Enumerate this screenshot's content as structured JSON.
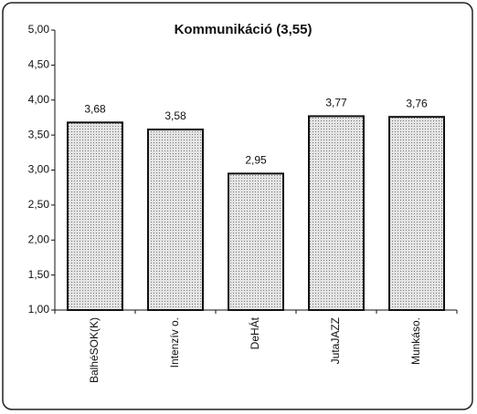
{
  "chart_data": {
    "type": "bar",
    "title": "Kommunikáció (3,55)",
    "categories": [
      "BalhéSOK(K)",
      "Intenzív o.",
      "DeHÁt",
      "JutaJAZZ",
      "Munkáso."
    ],
    "values": [
      3.68,
      3.58,
      2.95,
      3.77,
      3.76
    ],
    "value_labels": [
      "3,68",
      "3,58",
      "2,95",
      "3,77",
      "3,76"
    ],
    "color": "#cfcfcf",
    "ylim": [
      1,
      5
    ],
    "yticks": [
      {
        "value": 1,
        "label": "1,00"
      },
      {
        "value": 1.5,
        "label": "1,50"
      },
      {
        "value": 2,
        "label": "2,00"
      },
      {
        "value": 2.5,
        "label": "2,50"
      },
      {
        "value": 3,
        "label": "3,00"
      },
      {
        "value": 3.5,
        "label": "3,50"
      },
      {
        "value": 4,
        "label": "4,00"
      },
      {
        "value": 4.5,
        "label": "4,50"
      },
      {
        "value": 5,
        "label": "5,00"
      }
    ],
    "grid": false
  }
}
